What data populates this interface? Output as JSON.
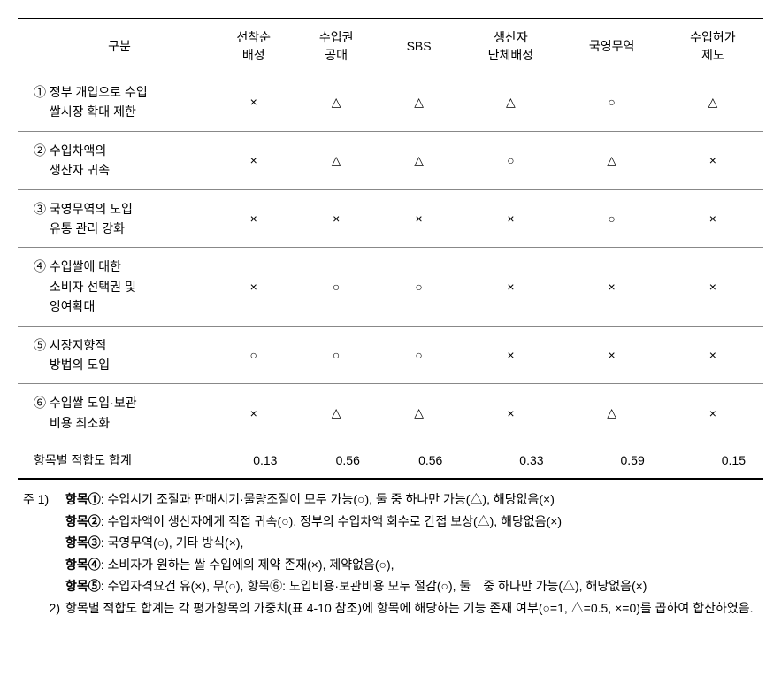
{
  "table": {
    "headers": [
      "구분",
      "선착순\n배정",
      "수입권\n공매",
      "SBS",
      "생산자\n단체배정",
      "국영무역",
      "수입허가\n제도"
    ],
    "rows": [
      {
        "label": "① 정부 개입으로 수입\n　 쌀시장 확대 제한",
        "cells": [
          "×",
          "△",
          "△",
          "△",
          "○",
          "△"
        ]
      },
      {
        "label": "② 수입차액의\n　 생산자 귀속",
        "cells": [
          "×",
          "△",
          "△",
          "○",
          "△",
          "×"
        ]
      },
      {
        "label": "③ 국영무역의 도입\n　 유통 관리 강화",
        "cells": [
          "×",
          "×",
          "×",
          "×",
          "○",
          "×"
        ]
      },
      {
        "label": "④ 수입쌀에 대한\n　 소비자 선택권 및\n　 잉여확대",
        "cells": [
          "×",
          "○",
          "○",
          "×",
          "×",
          "×"
        ]
      },
      {
        "label": "⑤ 시장지향적\n　 방법의 도입",
        "cells": [
          "○",
          "○",
          "○",
          "×",
          "×",
          "×"
        ]
      },
      {
        "label": "⑥ 수입쌀 도입·보관\n　 비용 최소화",
        "cells": [
          "×",
          "△",
          "△",
          "×",
          "△",
          "×"
        ]
      }
    ],
    "totals": {
      "label": "항목별 적합도 합계",
      "values": [
        "0.13",
        "0.56",
        "0.56",
        "0.33",
        "0.59",
        "0.15"
      ]
    }
  },
  "notes": {
    "prefix1": "주 1)",
    "items": [
      {
        "label": "항목①",
        "text": ": 수입시기 조절과 판매시기·물량조절이 모두 가능(○), 둘 중 하나만 가능(△), 해당없음(×)"
      },
      {
        "label": "항목②",
        "text": ": 수입차액이 생산자에게 직접 귀속(○), 정부의 수입차액 회수로 간접 보상(△), 해당없음(×)"
      },
      {
        "label": "항목③",
        "text": ": 국영무역(○), 기타 방식(×),"
      },
      {
        "label": "항목④",
        "text": ": 소비자가 원하는 쌀 수입에의 제약 존재(×), 제약없음(○),"
      },
      {
        "label": "항목⑤",
        "text": ": 수입자격요건 유(×), 무(○), 항목⑥: 도입비용·보관비용 모두 절감(○), 둘　중 하나만 가능(△), 해당없음(×)"
      }
    ],
    "prefix2": "2)",
    "note2": "항목별 적합도 합계는 각 평가항목의 가중치(표 4-10 참조)에 항목에 해당하는 기능 존재 여부(○=1, △=0.5, ×=0)를 곱하여 합산하였음."
  }
}
